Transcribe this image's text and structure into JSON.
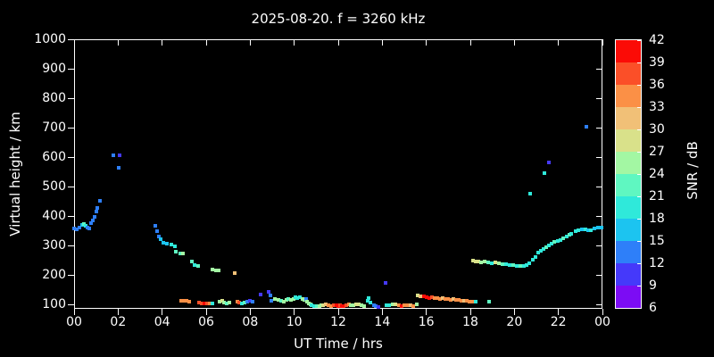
{
  "title": "2025-08-20. f = 3260 kHz",
  "colors": {
    "background": "#000000",
    "axes": "#ffffff",
    "text": "#ffffff"
  },
  "chart_data": {
    "type": "scatter",
    "title": "2025-08-20. f = 3260 kHz",
    "xlabel": "UT Time / hrs",
    "ylabel": "Virtual height / km",
    "xlim": [
      0,
      24
    ],
    "ylim": [
      85,
      1000
    ],
    "grid": false,
    "x_ticks": {
      "hours": [
        0,
        2,
        4,
        6,
        8,
        10,
        12,
        14,
        16,
        18,
        20,
        22,
        24
      ],
      "labels": [
        "00",
        "02",
        "04",
        "06",
        "08",
        "10",
        "12",
        "14",
        "16",
        "18",
        "20",
        "22",
        "00"
      ]
    },
    "y_ticks": {
      "values": [
        100,
        200,
        300,
        400,
        500,
        600,
        700,
        800,
        900,
        1000
      ],
      "labels": [
        "100",
        "200",
        "300",
        "400",
        "500",
        "600",
        "700",
        "800",
        "900",
        "1000"
      ]
    },
    "colorbar": {
      "label": "SNR / dB",
      "tick_labels": [
        "42",
        "39",
        "36",
        "33",
        "30",
        "27",
        "24",
        "21",
        "18",
        "15",
        "12",
        "9",
        "6"
      ],
      "levels_bottom_to_top": [
        6,
        9,
        12,
        15,
        18,
        21,
        24,
        27,
        30,
        33,
        36,
        39
      ],
      "palette": {
        "6": "#7c0cf4",
        "9": "#4539fa",
        "12": "#2e7ff9",
        "15": "#1cc4f0",
        "18": "#2fe9da",
        "21": "#5ff7c1",
        "24": "#a3f7a3",
        "27": "#d9e18a",
        "30": "#f1c077",
        "33": "#fb9046",
        "36": "#fb4f28",
        "39": "#fb0b06"
      }
    },
    "points_format": [
      "ut_hour",
      "virtual_height_km",
      "snr_db_level"
    ],
    "points": [
      [
        0.0,
        358,
        12
      ],
      [
        0.12,
        355,
        12
      ],
      [
        0.24,
        361,
        12
      ],
      [
        0.36,
        370,
        15
      ],
      [
        0.45,
        373,
        21
      ],
      [
        0.53,
        367,
        18
      ],
      [
        0.61,
        361,
        12
      ],
      [
        0.69,
        358,
        12
      ],
      [
        0.77,
        376,
        12
      ],
      [
        0.85,
        385,
        12
      ],
      [
        0.93,
        397,
        12
      ],
      [
        1.01,
        415,
        12
      ],
      [
        1.06,
        427,
        12
      ],
      [
        1.17,
        451,
        12
      ],
      [
        1.77,
        606,
        12
      ],
      [
        2.03,
        564,
        12
      ],
      [
        2.08,
        606,
        9
      ],
      [
        3.69,
        367,
        12
      ],
      [
        3.77,
        348,
        12
      ],
      [
        3.85,
        330,
        12
      ],
      [
        3.93,
        320,
        15
      ],
      [
        4.05,
        309,
        15
      ],
      [
        4.22,
        306,
        15
      ],
      [
        4.42,
        303,
        18
      ],
      [
        4.58,
        297,
        18
      ],
      [
        4.62,
        279,
        21
      ],
      [
        4.82,
        273,
        21
      ],
      [
        4.94,
        273,
        24
      ],
      [
        4.87,
        112,
        33
      ],
      [
        4.99,
        111,
        33
      ],
      [
        5.11,
        111,
        33
      ],
      [
        5.23,
        110,
        33
      ],
      [
        5.35,
        245,
        21
      ],
      [
        5.47,
        233,
        18
      ],
      [
        5.63,
        230,
        21
      ],
      [
        5.68,
        105,
        36
      ],
      [
        5.8,
        103,
        36
      ],
      [
        5.92,
        103,
        39
      ],
      [
        6.04,
        104,
        36
      ],
      [
        6.16,
        103,
        33
      ],
      [
        6.3,
        103,
        18
      ],
      [
        6.28,
        218,
        24
      ],
      [
        6.45,
        215,
        24
      ],
      [
        6.57,
        215,
        24
      ],
      [
        6.59,
        109,
        24
      ],
      [
        6.71,
        112,
        27
      ],
      [
        6.83,
        106,
        24
      ],
      [
        6.95,
        103,
        21
      ],
      [
        7.07,
        106,
        24
      ],
      [
        7.28,
        206,
        30
      ],
      [
        7.4,
        109,
        33
      ],
      [
        7.52,
        106,
        36
      ],
      [
        7.64,
        103,
        18
      ],
      [
        7.76,
        106,
        21
      ],
      [
        7.88,
        109,
        12
      ],
      [
        8.0,
        112,
        9
      ],
      [
        8.11,
        109,
        12
      ],
      [
        8.47,
        133,
        9
      ],
      [
        8.83,
        142,
        9
      ],
      [
        8.92,
        130,
        12
      ],
      [
        8.96,
        112,
        12
      ],
      [
        9.12,
        117,
        24
      ],
      [
        9.28,
        115,
        24
      ],
      [
        9.4,
        112,
        21
      ],
      [
        9.52,
        110,
        24
      ],
      [
        9.64,
        115,
        24
      ],
      [
        9.73,
        119,
        21
      ],
      [
        9.85,
        115,
        24
      ],
      [
        9.97,
        117,
        24
      ],
      [
        10.05,
        125,
        18
      ],
      [
        10.13,
        122,
        18
      ],
      [
        10.25,
        125,
        18
      ],
      [
        10.37,
        119,
        24
      ],
      [
        10.45,
        115,
        24
      ],
      [
        10.55,
        119,
        12
      ],
      [
        10.57,
        109,
        24
      ],
      [
        10.65,
        102,
        24
      ],
      [
        10.73,
        99,
        24
      ],
      [
        10.77,
        97,
        18
      ],
      [
        10.89,
        95,
        18
      ],
      [
        11.01,
        95,
        21
      ],
      [
        11.13,
        95,
        24
      ],
      [
        11.21,
        97,
        24
      ],
      [
        11.3,
        97,
        27
      ],
      [
        11.42,
        99,
        30
      ],
      [
        11.54,
        97,
        33
      ],
      [
        11.66,
        95,
        33
      ],
      [
        11.78,
        97,
        36
      ],
      [
        11.9,
        97,
        39
      ],
      [
        12.02,
        95,
        39
      ],
      [
        12.1,
        97,
        36
      ],
      [
        12.18,
        95,
        39
      ],
      [
        12.26,
        95,
        39
      ],
      [
        12.38,
        97,
        36
      ],
      [
        12.5,
        99,
        33
      ],
      [
        12.57,
        97,
        24
      ],
      [
        12.69,
        97,
        24
      ],
      [
        12.81,
        99,
        27
      ],
      [
        12.93,
        99,
        27
      ],
      [
        13.05,
        97,
        24
      ],
      [
        13.17,
        94,
        24
      ],
      [
        13.33,
        112,
        18
      ],
      [
        13.38,
        121,
        18
      ],
      [
        13.46,
        106,
        18
      ],
      [
        13.62,
        97,
        12
      ],
      [
        13.7,
        94,
        12
      ],
      [
        13.82,
        91,
        9
      ],
      [
        14.15,
        173,
        9
      ],
      [
        14.19,
        97,
        18
      ],
      [
        14.31,
        97,
        18
      ],
      [
        14.47,
        100,
        24
      ],
      [
        14.59,
        100,
        27
      ],
      [
        14.76,
        97,
        33
      ],
      [
        14.88,
        94,
        39
      ],
      [
        15.0,
        97,
        33
      ],
      [
        15.12,
        97,
        33
      ],
      [
        15.28,
        97,
        30
      ],
      [
        15.4,
        94,
        33
      ],
      [
        15.57,
        100,
        24
      ],
      [
        15.61,
        130,
        27
      ],
      [
        15.73,
        127,
        30
      ],
      [
        15.89,
        127,
        39
      ],
      [
        16.01,
        124,
        39
      ],
      [
        16.14,
        121,
        39
      ],
      [
        16.26,
        124,
        36
      ],
      [
        16.38,
        121,
        33
      ],
      [
        16.5,
        121,
        33
      ],
      [
        16.62,
        118,
        33
      ],
      [
        16.74,
        121,
        30
      ],
      [
        16.86,
        118,
        33
      ],
      [
        16.98,
        118,
        33
      ],
      [
        17.1,
        115,
        33
      ],
      [
        17.22,
        118,
        30
      ],
      [
        17.34,
        115,
        33
      ],
      [
        17.46,
        115,
        33
      ],
      [
        17.58,
        112,
        33
      ],
      [
        17.7,
        112,
        30
      ],
      [
        17.82,
        112,
        33
      ],
      [
        17.95,
        109,
        33
      ],
      [
        18.07,
        109,
        33
      ],
      [
        18.23,
        109,
        18
      ],
      [
        18.12,
        248,
        27
      ],
      [
        18.24,
        245,
        27
      ],
      [
        18.36,
        245,
        27
      ],
      [
        18.48,
        242,
        24
      ],
      [
        18.64,
        245,
        24
      ],
      [
        18.8,
        242,
        21
      ],
      [
        18.85,
        109,
        21
      ],
      [
        18.97,
        239,
        18
      ],
      [
        19.13,
        242,
        27
      ],
      [
        19.29,
        239,
        24
      ],
      [
        19.45,
        236,
        21
      ],
      [
        19.61,
        236,
        18
      ],
      [
        19.77,
        233,
        18
      ],
      [
        19.93,
        233,
        21
      ],
      [
        20.09,
        230,
        18
      ],
      [
        20.26,
        230,
        21
      ],
      [
        20.42,
        230,
        18
      ],
      [
        20.54,
        233,
        18
      ],
      [
        20.66,
        239,
        18
      ],
      [
        20.72,
        476,
        18
      ],
      [
        20.83,
        252,
        18
      ],
      [
        20.95,
        261,
        18
      ],
      [
        21.07,
        276,
        18
      ],
      [
        21.19,
        282,
        18
      ],
      [
        21.31,
        288,
        18
      ],
      [
        21.36,
        545,
        18
      ],
      [
        21.43,
        294,
        21
      ],
      [
        21.55,
        300,
        18
      ],
      [
        21.57,
        583,
        9
      ],
      [
        21.68,
        306,
        18
      ],
      [
        21.8,
        312,
        21
      ],
      [
        21.96,
        315,
        18
      ],
      [
        22.08,
        318,
        18
      ],
      [
        22.2,
        324,
        21
      ],
      [
        22.36,
        330,
        18
      ],
      [
        22.48,
        336,
        21
      ],
      [
        22.6,
        339,
        18
      ],
      [
        22.77,
        348,
        18
      ],
      [
        22.89,
        352,
        18
      ],
      [
        23.05,
        355,
        15
      ],
      [
        23.21,
        355,
        18
      ],
      [
        23.27,
        703,
        12
      ],
      [
        23.37,
        352,
        15
      ],
      [
        23.49,
        352,
        18
      ],
      [
        23.62,
        358,
        15
      ],
      [
        23.78,
        360,
        15
      ],
      [
        23.94,
        360,
        15
      ]
    ]
  }
}
